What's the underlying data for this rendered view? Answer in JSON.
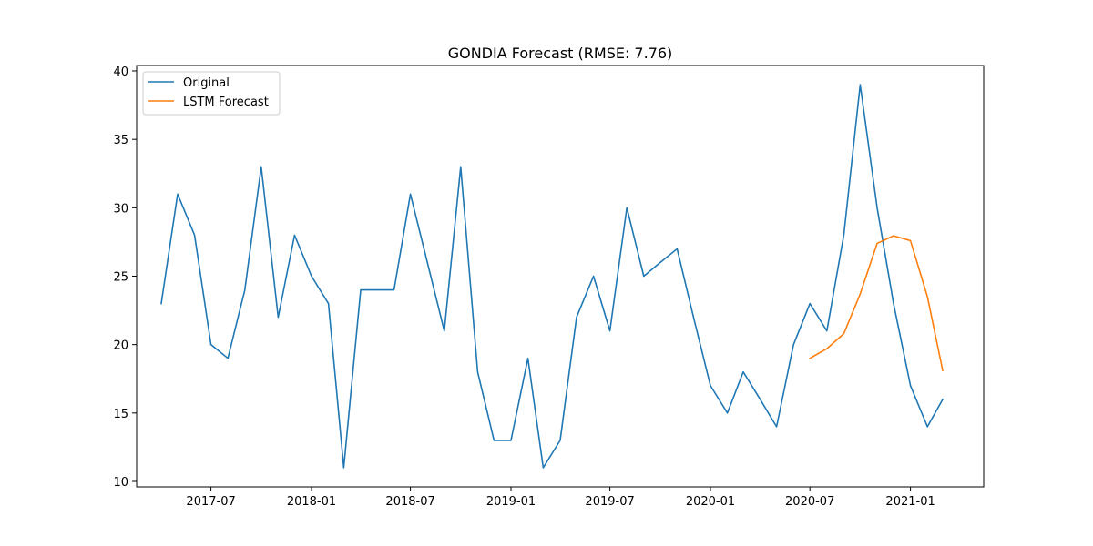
{
  "chart_data": {
    "type": "line",
    "title": "GONDIA Forecast (RMSE: 7.76)",
    "xlabel": "",
    "ylabel": "",
    "ylim": [
      9.6,
      40.4
    ],
    "xlim": [
      "2017-02-15",
      "2021-05-15"
    ],
    "yticks": [
      10,
      15,
      20,
      25,
      30,
      35,
      40
    ],
    "xticks": [
      "2017-07",
      "2018-01",
      "2018-07",
      "2019-01",
      "2019-07",
      "2020-01",
      "2020-07",
      "2021-01"
    ],
    "grid": false,
    "legend_position": "upper-left",
    "series": [
      {
        "name": "Original",
        "color": "#1f77b4",
        "x": [
          "2017-04",
          "2017-05",
          "2017-06",
          "2017-07",
          "2017-08",
          "2017-09",
          "2017-10",
          "2017-11",
          "2017-12",
          "2018-01",
          "2018-02",
          "2018-03",
          "2018-04",
          "2018-05",
          "2018-06",
          "2018-07",
          "2018-08",
          "2018-09",
          "2018-10",
          "2018-11",
          "2018-12",
          "2019-01",
          "2019-02",
          "2019-03",
          "2019-04",
          "2019-05",
          "2019-06",
          "2019-07",
          "2019-08",
          "2019-09",
          "2019-10",
          "2019-11",
          "2019-12",
          "2020-01",
          "2020-02",
          "2020-03",
          "2020-04",
          "2020-05",
          "2020-06",
          "2020-07",
          "2020-08",
          "2020-09",
          "2020-10",
          "2020-11",
          "2020-12",
          "2021-01",
          "2021-02",
          "2021-03"
        ],
        "values": [
          23,
          31,
          28,
          20,
          19,
          24,
          33,
          22,
          28,
          25,
          23,
          11,
          24,
          24,
          24,
          31,
          26,
          21,
          33,
          18,
          13,
          13,
          19,
          11,
          13,
          22,
          25,
          21,
          30,
          25,
          26,
          27,
          22,
          17,
          15,
          18,
          16,
          14,
          20,
          23,
          21,
          28,
          39,
          30,
          23,
          17,
          14,
          16
        ]
      },
      {
        "name": "LSTM Forecast",
        "color": "#ff7f0e",
        "x": [
          "2020-07",
          "2020-08",
          "2020-09",
          "2020-10",
          "2020-11",
          "2020-12",
          "2021-01",
          "2021-02",
          "2021-03"
        ],
        "values": [
          19,
          19.7,
          20.8,
          23.7,
          27.4,
          27.95,
          27.6,
          23.5,
          18.1
        ]
      }
    ]
  }
}
